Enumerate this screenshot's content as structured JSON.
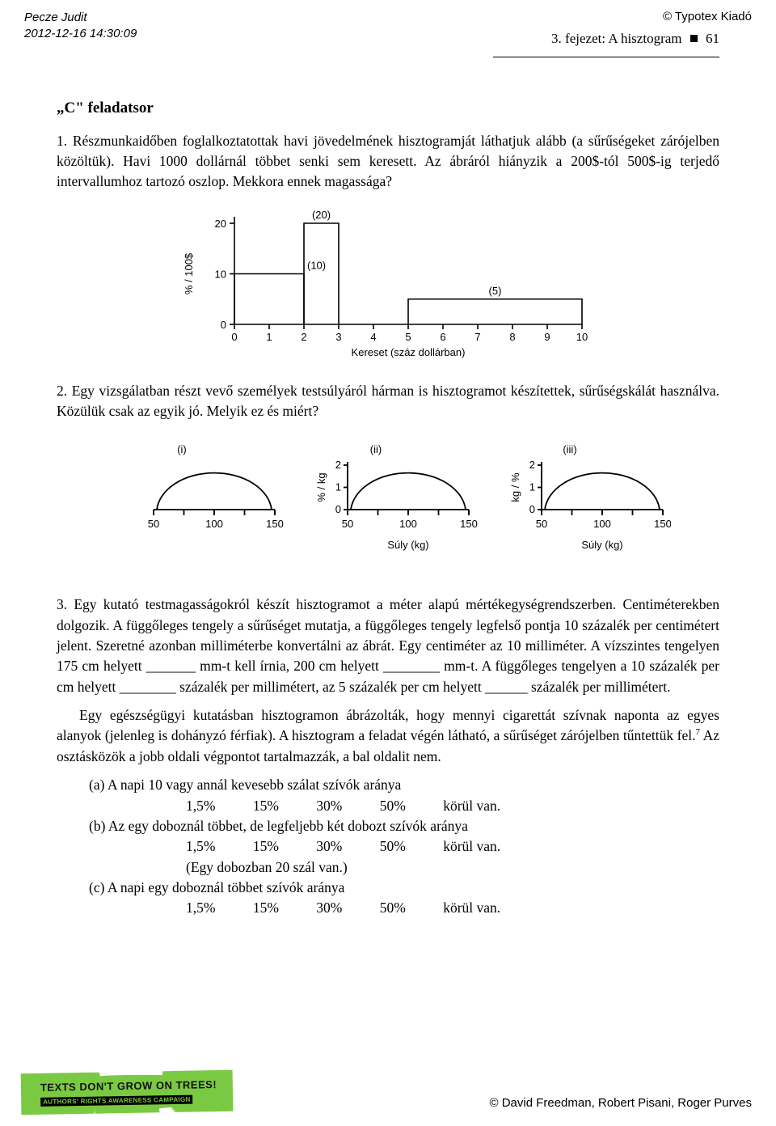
{
  "header": {
    "author": "Pecze Judit",
    "timestamp": "2012-12-16 14:30:09",
    "publisher": "© Typotex Kiadó",
    "chapter_label": "3. fejezet: A hisztogram",
    "page_number": "61"
  },
  "section_title": "„C\" feladatsor",
  "para1": "1. Részmunkaidőben foglalkoztatottak havi jövedelmének hisztogramját láthatjuk alább (a sűrűségeket zárójelben közöltük). Havi 1000 dollárnál többet senki sem keresett. Az ábráról hiányzik a 200$-tól 500$-ig terjedő intervallumhoz tartozó oszlop. Mekkora ennek magassága?",
  "histogram1": {
    "type": "histogram",
    "ylabel": "% / 100$",
    "xlabel": "Kereset (száz dollárban)",
    "xticks": [
      0,
      1,
      2,
      3,
      4,
      5,
      6,
      7,
      8,
      9,
      10
    ],
    "yticks": [
      0,
      10,
      20
    ],
    "bars": [
      {
        "x0": 0,
        "x1": 2,
        "h": 10,
        "label": "(10)"
      },
      {
        "x0": 2,
        "x1": 3,
        "h": 20,
        "label": "(20)"
      },
      {
        "x0": 5,
        "x1": 10,
        "h": 5,
        "label": "(5)"
      }
    ],
    "stroke": "#000000",
    "bg": "#ffffff",
    "font_size_label": 13,
    "font_size_tick": 13,
    "line_width": 1.6
  },
  "para2": "2. Egy vizsgálatban részt vevő személyek testsúlyáról hárman is hisztogramot készítettek, sűrűségskálát használva. Közülük csak az egyik jó. Melyik ez és miért?",
  "threepanel": {
    "type": "small-multiples",
    "panels": [
      "(i)",
      "(ii)",
      "(iii)"
    ],
    "x_range": [
      50,
      150
    ],
    "xticks": [
      50,
      100,
      150
    ],
    "p2_ylabel": "% / kg",
    "p2_yticks": [
      0,
      1,
      2
    ],
    "p3_ylabel": "kg / %",
    "p3_yticks": [
      0,
      1,
      2
    ],
    "xlabel_center": "Súly (kg)",
    "xlabel_right": "Súly (kg)",
    "curve": {
      "type": "arc",
      "peak_rel": 0.9
    },
    "stroke": "#000000",
    "line_width": 1.8,
    "font_size": 13
  },
  "para3": "3. Egy kutató testmagasságokról készít hisztogramot a méter alapú mértékegységrendszerben. Centiméterekben dolgozik. A függőleges tengely a sűrűséget mutatja, a függőleges tengely legfelső pontja 10 százalék per centimétert jelent. Szeretné azonban milliméterbe konvertálni az ábrát. Egy centiméter az 10 milliméter. A vízszintes tengelyen 175 cm helyett _______ mm-t kell írnia, 200 cm helyett ________ mm-t. A függőleges tengelyen a 10 százalék per cm helyett ________ százalék per millimétert, az 5 százalék per cm helyett ______ százalék per millimétert.",
  "para3b_1": "Egy egészségügyi kutatásban hisztogramon ábrázolták, hogy mennyi cigarettát szívnak naponta az egyes alanyok (jelenleg is dohányzó férfiak). A hisztogram a feladat végén látható, a sűrűséget zárójelben tűntettük fel.",
  "footnote7": "7",
  "para3b_2": " Az osztásközök a jobb oldali végpontot tartalmazzák, a bal oldalit nem.",
  "qa": {
    "a_text": "(a) A napi 10 vagy annál kevesebb szálat szívók aránya",
    "b_text": "(b) Az egy doboznál többet, de legfeljebb két dobozt szívók aránya",
    "b_note": "(Egy dobozban 20 szál van.)",
    "c_text": "(c) A napi egy doboznál többet szívók aránya",
    "options": [
      "1,5%",
      "15%",
      "30%",
      "50%"
    ],
    "tail": "körül van."
  },
  "footer": {
    "badge_line1": "TEXTS DON'T GROW ON TREES!",
    "badge_line2": "AUTHORS' RIGHTS AWARENESS CAMPAIGN",
    "copyright": "© David Freedman, Robert Pisani, Roger Purves"
  }
}
